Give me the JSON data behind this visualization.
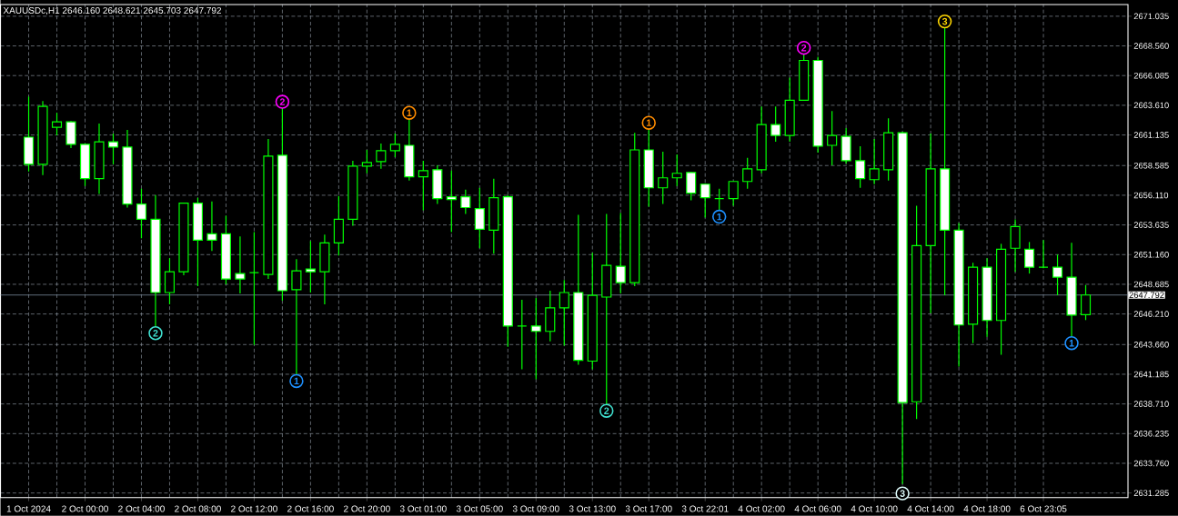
{
  "chart_data": {
    "type": "candlestick",
    "title": "XAUUSDc,H1  2646.160 2648.621 2645.703 2647.792",
    "color": "#00ff00",
    "categories": [
      "1 Oct 2024",
      null,
      null,
      null,
      "2 Oct 00:00",
      null,
      null,
      null,
      "2 Oct 04:00",
      null,
      null,
      null,
      "2 Oct 08:00",
      null,
      null,
      null,
      "2 Oct 12:00",
      null,
      null,
      null,
      "2 Oct 16:00",
      null,
      null,
      null,
      "2 Oct 20:00",
      null,
      null,
      null,
      "3 Oct 01:00",
      null,
      null,
      null,
      "3 Oct 05:00",
      null,
      null,
      null,
      "3 Oct 09:00",
      null,
      null,
      null,
      "3 Oct 13:00",
      null,
      null,
      null,
      "3 Oct 17:00",
      null,
      null,
      null,
      "3 Oct 22:01",
      null,
      null,
      null,
      "4 Oct 02:00",
      null,
      null,
      null,
      "4 Oct 06:00",
      null,
      null,
      null,
      "4 Oct 10:00",
      null,
      null,
      null,
      "4 Oct 14:00",
      null,
      null,
      null,
      "4 Oct 18:00",
      null,
      null,
      null,
      "6 Oct 23:05",
      null,
      null,
      null
    ],
    "ohlc": [
      [
        2660.95,
        2664.33,
        2658.09,
        2658.69
      ],
      [
        2658.69,
        2663.96,
        2657.79,
        2663.51
      ],
      [
        2661.78,
        2662.98,
        2661.1,
        2662.23
      ],
      [
        2662.23,
        2662.3,
        2660.04,
        2660.35
      ],
      [
        2660.35,
        2660.42,
        2656.88,
        2657.49
      ],
      [
        2657.49,
        2662.08,
        2656.21,
        2660.57
      ],
      [
        2660.57,
        2661.25,
        2658.69,
        2660.12
      ],
      [
        2660.12,
        2661.55,
        2655.08,
        2655.38
      ],
      [
        2655.38,
        2656.66,
        2652.52,
        2654.1
      ],
      [
        2654.1,
        2656.13,
        2645.14,
        2648.0
      ],
      [
        2648.0,
        2650.86,
        2647.02,
        2649.73
      ],
      [
        2649.73,
        2655.5,
        2649.43,
        2655.45
      ],
      [
        2655.45,
        2655.9,
        2648.53,
        2652.37
      ],
      [
        2652.89,
        2655.6,
        2651.46,
        2652.37
      ],
      [
        2652.89,
        2654.4,
        2648.68,
        2649.13
      ],
      [
        2649.58,
        2652.67,
        2647.92,
        2649.13
      ],
      [
        2649.66,
        2653.04,
        2643.63,
        2649.66
      ],
      [
        2649.5,
        2660.8,
        2649.13,
        2659.37
      ],
      [
        2659.44,
        2663.51,
        2647.32,
        2648.15
      ],
      [
        2648.23,
        2650.78,
        2641.0,
        2649.81
      ],
      [
        2649.96,
        2652.29,
        2648.0,
        2649.73
      ],
      [
        2649.73,
        2652.82,
        2647.02,
        2652.14
      ],
      [
        2652.14,
        2656.05,
        2651.09,
        2654.1
      ],
      [
        2654.1,
        2658.99,
        2653.57,
        2658.54
      ],
      [
        2658.54,
        2659.89,
        2657.94,
        2658.84
      ],
      [
        2658.92,
        2660.42,
        2658.31,
        2659.82
      ],
      [
        2659.82,
        2661.25,
        2659.29,
        2660.35
      ],
      [
        2660.27,
        2662.6,
        2657.33,
        2657.64
      ],
      [
        2657.64,
        2658.99,
        2654.85,
        2658.16
      ],
      [
        2658.24,
        2658.61,
        2655.38,
        2655.83
      ],
      [
        2655.98,
        2658.16,
        2653.04,
        2655.75
      ],
      [
        2655.98,
        2656.58,
        2654.55,
        2655.08
      ],
      [
        2655.0,
        2656.73,
        2651.69,
        2653.27
      ],
      [
        2653.19,
        2657.49,
        2651.24,
        2655.9
      ],
      [
        2655.98,
        2656.13,
        2643.48,
        2645.21
      ],
      [
        2645.21,
        2647.4,
        2641.6,
        2645.21
      ],
      [
        2645.21,
        2647.55,
        2640.77,
        2644.76
      ],
      [
        2644.76,
        2648.15,
        2643.93,
        2646.72
      ],
      [
        2646.72,
        2649.05,
        2643.56,
        2648.0
      ],
      [
        2648.0,
        2654.47,
        2641.98,
        2642.35
      ],
      [
        2642.28,
        2651.31,
        2641.6,
        2647.77
      ],
      [
        2647.62,
        2654.55,
        2638.59,
        2650.26
      ],
      [
        2650.18,
        2654.62,
        2647.92,
        2648.83
      ],
      [
        2648.83,
        2661.32,
        2648.53,
        2659.89
      ],
      [
        2659.89,
        2661.78,
        2655.15,
        2656.73
      ],
      [
        2656.73,
        2659.74,
        2655.38,
        2657.56
      ],
      [
        2657.56,
        2659.52,
        2656.88,
        2657.94
      ],
      [
        2658.01,
        2658.05,
        2655.68,
        2656.28
      ],
      [
        2657.03,
        2657.08,
        2654.25,
        2655.9
      ],
      [
        2655.83,
        2656.66,
        2654.77,
        2655.83
      ],
      [
        2655.83,
        2657.26,
        2655.23,
        2657.26
      ],
      [
        2657.26,
        2659.22,
        2656.66,
        2658.31
      ],
      [
        2658.24,
        2663.51,
        2657.94,
        2662.0
      ],
      [
        2662.0,
        2663.51,
        2660.57,
        2661.1
      ],
      [
        2661.1,
        2665.92,
        2660.57,
        2664.03
      ],
      [
        2664.03,
        2668.02,
        2663.98,
        2667.35
      ],
      [
        2667.35,
        2667.65,
        2659.67,
        2660.2
      ],
      [
        2660.27,
        2663.13,
        2658.61,
        2661.1
      ],
      [
        2661.02,
        2661.7,
        2658.76,
        2658.99
      ],
      [
        2658.99,
        2660.2,
        2656.73,
        2657.49
      ],
      [
        2657.41,
        2660.8,
        2657.03,
        2658.31
      ],
      [
        2658.24,
        2662.53,
        2657.33,
        2661.32
      ],
      [
        2661.32,
        2661.4,
        2632.04,
        2638.82
      ],
      [
        2638.89,
        2655.23,
        2637.46,
        2651.91
      ],
      [
        2651.91,
        2661.25,
        2646.27,
        2658.31
      ],
      [
        2658.31,
        2670.21,
        2647.77,
        2653.19
      ],
      [
        2653.19,
        2653.8,
        2641.83,
        2645.29
      ],
      [
        2645.36,
        2650.48,
        2643.78,
        2650.11
      ],
      [
        2650.11,
        2650.86,
        2644.31,
        2645.67
      ],
      [
        2645.67,
        2652.06,
        2642.81,
        2651.61
      ],
      [
        2651.69,
        2654.1,
        2649.73,
        2653.5
      ],
      [
        2651.61,
        2652.21,
        2649.58,
        2650.11
      ],
      [
        2650.11,
        2652.37,
        2650.03,
        2650.11
      ],
      [
        2650.11,
        2651.16,
        2647.77,
        2649.28
      ],
      [
        2649.28,
        2652.14,
        2644.16,
        2646.12
      ],
      [
        2646.16,
        2648.621,
        2645.703,
        2647.792
      ]
    ],
    "series": [
      {
        "type": "scatter",
        "name": "1",
        "color": "#ff8c00",
        "marker": "circle",
        "values": [
          null,
          null,
          null,
          null,
          null,
          null,
          null,
          null,
          null,
          null,
          null,
          null,
          null,
          null,
          null,
          null,
          null,
          null,
          null,
          null,
          null,
          null,
          null,
          null,
          null,
          null,
          null,
          2662.98,
          null,
          null,
          null,
          null,
          null,
          null,
          null,
          null,
          null,
          null,
          null,
          null,
          null,
          null,
          null,
          null,
          2662.15,
          null,
          null,
          null,
          null,
          null,
          null,
          null,
          null,
          null,
          null,
          null,
          null,
          null,
          null,
          null,
          null,
          null,
          null,
          null,
          null,
          null,
          null,
          null,
          null,
          null,
          null,
          null,
          null,
          null,
          null,
          null
        ]
      },
      {
        "type": "scatter",
        "name": "1",
        "color": "#1e90ff",
        "marker": "circle",
        "values": [
          null,
          null,
          null,
          null,
          null,
          null,
          null,
          null,
          null,
          null,
          null,
          null,
          null,
          null,
          null,
          null,
          null,
          null,
          null,
          2640.62,
          null,
          null,
          null,
          null,
          null,
          null,
          null,
          null,
          null,
          null,
          null,
          null,
          null,
          null,
          null,
          null,
          null,
          null,
          null,
          null,
          null,
          null,
          null,
          null,
          null,
          null,
          null,
          null,
          null,
          2654.32,
          null,
          null,
          null,
          null,
          null,
          null,
          null,
          null,
          null,
          null,
          null,
          null,
          null,
          null,
          null,
          null,
          null,
          null,
          null,
          null,
          null,
          null,
          null,
          null,
          2643.78,
          null
        ]
      },
      {
        "type": "scatter",
        "name": "2",
        "color": "#ff00ff",
        "marker": "circle",
        "values": [
          null,
          null,
          null,
          null,
          null,
          null,
          null,
          null,
          null,
          null,
          null,
          null,
          null,
          null,
          null,
          null,
          null,
          null,
          2663.9,
          null,
          null,
          null,
          null,
          null,
          null,
          null,
          null,
          null,
          null,
          null,
          null,
          null,
          null,
          null,
          null,
          null,
          null,
          null,
          null,
          null,
          null,
          null,
          null,
          null,
          null,
          null,
          null,
          null,
          null,
          null,
          null,
          null,
          null,
          null,
          null,
          2668.4,
          null,
          null,
          null,
          null,
          null,
          null,
          null,
          null,
          null,
          null,
          null,
          null,
          null,
          null,
          null,
          null,
          null,
          null,
          null,
          null
        ]
      },
      {
        "type": "scatter",
        "name": "2",
        "color": "#40e0d0",
        "marker": "circle",
        "values": [
          null,
          null,
          null,
          null,
          null,
          null,
          null,
          null,
          null,
          2644.61,
          null,
          null,
          null,
          null,
          null,
          null,
          null,
          null,
          null,
          null,
          null,
          null,
          null,
          null,
          null,
          null,
          null,
          null,
          null,
          null,
          null,
          null,
          null,
          null,
          null,
          null,
          null,
          null,
          null,
          null,
          null,
          2638.14,
          null,
          null,
          null,
          null,
          null,
          null,
          null,
          null,
          null,
          null,
          null,
          null,
          null,
          null,
          null,
          null,
          null,
          null,
          null,
          null,
          null,
          null,
          null,
          null,
          null,
          null,
          null,
          null,
          null,
          null,
          null,
          null,
          null,
          null
        ]
      },
      {
        "type": "scatter",
        "name": "3",
        "color": "#ffd700",
        "marker": "circle",
        "values": [
          null,
          null,
          null,
          null,
          null,
          null,
          null,
          null,
          null,
          null,
          null,
          null,
          null,
          null,
          null,
          null,
          null,
          null,
          null,
          null,
          null,
          null,
          null,
          null,
          null,
          null,
          null,
          null,
          null,
          null,
          null,
          null,
          null,
          null,
          null,
          null,
          null,
          null,
          null,
          null,
          null,
          null,
          null,
          null,
          null,
          null,
          null,
          null,
          null,
          null,
          null,
          null,
          null,
          null,
          null,
          null,
          null,
          null,
          null,
          null,
          null,
          null,
          null,
          null,
          null,
          2670.6,
          null,
          null,
          null,
          null,
          null,
          null,
          null,
          null,
          null,
          null
        ]
      },
      {
        "type": "scatter",
        "name": "3",
        "color": "#e0ffff",
        "marker": "circle",
        "values": [
          null,
          null,
          null,
          null,
          null,
          null,
          null,
          null,
          null,
          null,
          null,
          null,
          null,
          null,
          null,
          null,
          null,
          null,
          null,
          null,
          null,
          null,
          null,
          null,
          null,
          null,
          null,
          null,
          null,
          null,
          null,
          null,
          null,
          null,
          null,
          null,
          null,
          null,
          null,
          null,
          null,
          null,
          null,
          null,
          null,
          null,
          null,
          null,
          null,
          null,
          null,
          null,
          null,
          null,
          null,
          null,
          null,
          null,
          null,
          null,
          null,
          null,
          2631.25,
          null,
          null,
          null,
          null,
          null,
          null,
          null,
          null,
          null,
          null,
          null,
          null,
          null
        ]
      }
    ],
    "ylim": [
      2630.9,
      2672.01
    ],
    "yticks": [
      {
        "value": 2671.035,
        "label": "2671.035"
      },
      {
        "value": 2668.56,
        "label": "2668.560"
      },
      {
        "value": 2666.085,
        "label": "2666.085"
      },
      {
        "value": 2663.61,
        "label": "2663.610"
      },
      {
        "value": 2661.135,
        "label": "2661.135"
      },
      {
        "value": 2658.585,
        "label": "2658.585"
      },
      {
        "value": 2656.11,
        "label": "2656.110"
      },
      {
        "value": 2653.635,
        "label": "2653.635"
      },
      {
        "value": 2651.16,
        "label": "2651.160"
      },
      {
        "value": 2648.685,
        "label": "2648.685"
      },
      {
        "value": 2646.21,
        "label": "2646.210"
      },
      {
        "value": 2643.66,
        "label": "2643.660"
      },
      {
        "value": 2641.185,
        "label": "2641.185"
      },
      {
        "value": 2638.71,
        "label": "2638.710"
      },
      {
        "value": 2636.235,
        "label": "2636.235"
      },
      {
        "value": 2633.76,
        "label": "2633.760"
      },
      {
        "value": 2631.285,
        "label": "2631.285"
      }
    ],
    "grid": true,
    "ref_lines": [
      {
        "axis": "y",
        "value": 2647.792,
        "label": "2647.792",
        "color": "#778899"
      }
    ]
  }
}
